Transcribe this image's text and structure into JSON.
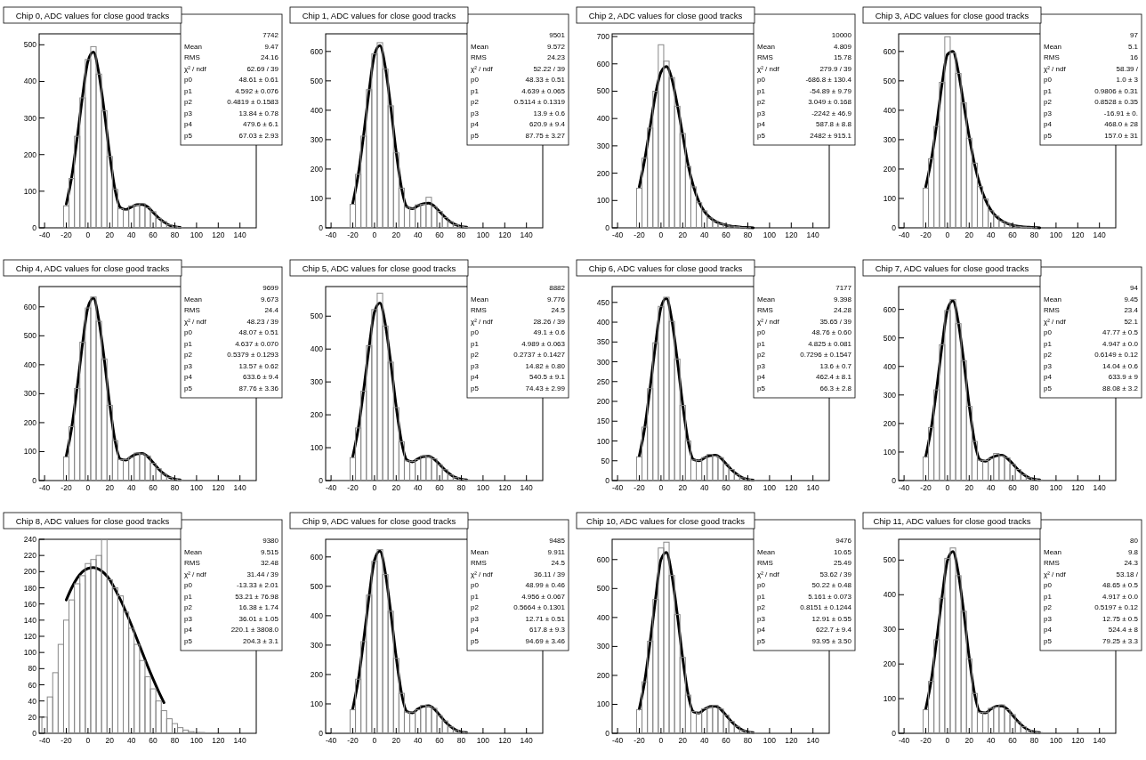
{
  "chart_data": [
    {
      "type": "histogram",
      "title": "Chip 0, ADC values for close good tracks",
      "bins": [
        -22.5,
        -17.5,
        -12.5,
        -7.5,
        -2.5,
        2.5,
        7.5,
        12.5,
        17.5,
        22.5,
        27.5,
        32.5,
        37.5,
        42.5,
        47.5,
        52.5,
        57.5,
        62.5,
        67.5,
        72.5,
        77.5,
        82.5,
        87.5
      ],
      "values": [
        60,
        135,
        250,
        355,
        460,
        495,
        420,
        320,
        195,
        105,
        52,
        48,
        60,
        62,
        66,
        55,
        44,
        26,
        17,
        8,
        3,
        1
      ],
      "color": "#888888",
      "series": [
        {
          "type": "line",
          "x": [
            -20,
            -15,
            -10,
            -5,
            0,
            5,
            10,
            15,
            20,
            25,
            30,
            35,
            40,
            45,
            50,
            55,
            60,
            65,
            70,
            75,
            80,
            85
          ],
          "values": [
            65,
            139,
            245,
            360,
            456,
            480,
            422,
            318,
            200,
            103,
            55,
            50,
            57,
            63,
            64,
            57,
            42,
            27,
            16,
            7,
            3,
            1
          ],
          "color": "#000000"
        }
      ],
      "xlim": [
        -45,
        155
      ],
      "xticks": [
        -40,
        -20,
        0,
        20,
        40,
        60,
        80,
        100,
        120,
        140
      ],
      "ylim": [
        0,
        530
      ],
      "yticks": [
        0,
        100,
        200,
        300,
        400,
        500
      ],
      "annotations": [
        "7742",
        "Mean  9.47",
        "RMS  24.16",
        "χ² / ndf  62.69 / 39",
        "p0  48.61 ± 0.61",
        "p1  4.592 ± 0.076",
        "p2  0.4819 ± 0.1583",
        "p3  13.84 ± 0.78",
        "p4  479.6 ± 6.1",
        "p5  67.03 ± 2.93"
      ]
    },
    {
      "type": "histogram",
      "title": "Chip 1, ADC values for close good tracks",
      "bins": [
        -22.5,
        -17.5,
        -12.5,
        -7.5,
        -2.5,
        2.5,
        7.5,
        12.5,
        17.5,
        22.5,
        27.5,
        32.5,
        37.5,
        42.5,
        47.5,
        52.5,
        57.5,
        62.5,
        67.5,
        72.5,
        77.5,
        82.5,
        87.5
      ],
      "values": [
        80,
        182,
        312,
        470,
        592,
        630,
        540,
        415,
        255,
        135,
        70,
        66,
        78,
        80,
        104,
        72,
        56,
        35,
        21,
        10,
        4,
        2
      ],
      "color": "#888888",
      "series": [
        {
          "type": "line",
          "x": [
            -20,
            -15,
            -10,
            -5,
            0,
            5,
            10,
            15,
            20,
            25,
            30,
            35,
            40,
            45,
            50,
            55,
            60,
            65,
            70,
            75,
            80,
            85
          ],
          "values": [
            84,
            180,
            316,
            465,
            589,
            620,
            546,
            411,
            258,
            133,
            71,
            65,
            75,
            82,
            84,
            74,
            55,
            36,
            20,
            10,
            4,
            2
          ],
          "color": "#000000"
        }
      ],
      "xlim": [
        -45,
        155
      ],
      "xticks": [
        -40,
        -20,
        0,
        20,
        40,
        60,
        80,
        100,
        120,
        140
      ],
      "ylim": [
        0,
        660
      ],
      "yticks": [
        0,
        100,
        200,
        300,
        400,
        500,
        600
      ],
      "annotations": [
        "9501",
        "Mean  9.572",
        "RMS  24.23",
        "χ² / ndf  52.22 / 39",
        "p0  48.33 ± 0.51",
        "p1  4.639 ± 0.065",
        "p2  0.5114 ± 0.1319",
        "p3  13.9 ± 0.6",
        "p4  620.9 ± 9.4",
        "p5  87.75 ± 3.27"
      ]
    },
    {
      "type": "histogram",
      "title": "Chip 2, ADC values for close good tracks",
      "bins": [
        -22.5,
        -17.5,
        -12.5,
        -7.5,
        -2.5,
        2.5,
        7.5,
        12.5,
        17.5,
        22.5,
        27.5,
        32.5,
        37.5,
        42.5,
        47.5,
        52.5,
        57.5,
        62.5,
        67.5,
        72.5,
        77.5,
        82.5,
        87.5
      ],
      "values": [
        145,
        255,
        365,
        500,
        670,
        610,
        550,
        445,
        345,
        225,
        150,
        92,
        62,
        36,
        25,
        14,
        10,
        6,
        4,
        2,
        1,
        0
      ],
      "color": "#888888",
      "series": [
        {
          "type": "line",
          "x": [
            -20,
            -15,
            -10,
            -5,
            0,
            5,
            10,
            15,
            20,
            25,
            30,
            35,
            40,
            45,
            50,
            55,
            60,
            65,
            70,
            75,
            80,
            85
          ],
          "values": [
            150,
            250,
            370,
            490,
            570,
            590,
            545,
            450,
            340,
            230,
            150,
            95,
            60,
            38,
            24,
            15,
            10,
            6,
            4,
            2,
            1,
            0
          ],
          "color": "#000000"
        }
      ],
      "xlim": [
        -45,
        155
      ],
      "xticks": [
        -40,
        -20,
        0,
        20,
        40,
        60,
        80,
        100,
        120,
        140
      ],
      "ylim": [
        0,
        710
      ],
      "yticks": [
        0,
        100,
        200,
        300,
        400,
        500,
        600,
        700
      ],
      "annotations": [
        "10000",
        "Mean  4.809",
        "RMS  15.78",
        "χ² / ndf  279.9 / 39",
        "p0  -686.8 ± 130.4",
        "p1  -54.89 ± 9.79",
        "p2  3.049 ± 0.168",
        "p3  -2242 ± 46.9",
        "p4  587.8 ± 8.8",
        "p5  2482 ± 915.1"
      ]
    },
    {
      "type": "histogram",
      "title": "Chip 3, ADC values for close good tracks",
      "bins": [
        -22.5,
        -17.5,
        -12.5,
        -7.5,
        -2.5,
        2.5,
        7.5,
        12.5,
        17.5,
        22.5,
        27.5,
        32.5,
        37.5,
        42.5,
        47.5,
        52.5,
        57.5,
        62.5,
        67.5,
        72.5,
        77.5,
        82.5,
        87.5
      ],
      "values": [
        135,
        235,
        345,
        495,
        650,
        595,
        525,
        425,
        305,
        220,
        140,
        98,
        58,
        40,
        23,
        15,
        9,
        5,
        3,
        2,
        1,
        0
      ],
      "color": "#888888",
      "series": [
        {
          "type": "line",
          "x": [
            -20,
            -15,
            -10,
            -5,
            0,
            5,
            10,
            15,
            20,
            25,
            30,
            35,
            40,
            45,
            50,
            55,
            60,
            65,
            70,
            75,
            80,
            85
          ],
          "values": [
            140,
            230,
            350,
            490,
            590,
            600,
            530,
            420,
            310,
            215,
            145,
            95,
            60,
            38,
            24,
            15,
            9,
            5,
            3,
            2,
            1,
            0
          ],
          "color": "#000000"
        }
      ],
      "xlim": [
        -45,
        155
      ],
      "xticks": [
        -40,
        -20,
        0,
        20,
        40,
        60,
        80,
        100,
        120,
        140
      ],
      "ylim": [
        0,
        660
      ],
      "yticks": [
        0,
        100,
        200,
        300,
        400,
        500,
        600
      ],
      "annotations": [
        "97",
        "Mean  5.1",
        "RMS  16",
        "χ² / ndf  58.39 /",
        "p0  1.0 ± 3",
        "p1  0.9806 ± 0.31",
        "p2  0.8528 ± 0.35",
        "p3  -16.91 ± 0.",
        "p4  468.0 ± 28",
        "p5  157.0 ± 31"
      ]
    },
    {
      "type": "histogram",
      "title": "Chip 4, ADC values for close good tracks",
      "bins": [
        -22.5,
        -17.5,
        -12.5,
        -7.5,
        -2.5,
        2.5,
        7.5,
        12.5,
        17.5,
        22.5,
        27.5,
        32.5,
        37.5,
        42.5,
        47.5,
        52.5,
        57.5,
        62.5,
        67.5,
        72.5,
        77.5,
        82.5,
        87.5
      ],
      "values": [
        82,
        186,
        318,
        478,
        596,
        634,
        550,
        420,
        260,
        138,
        72,
        73,
        80,
        95,
        92,
        85,
        60,
        41,
        22,
        11,
        5,
        2
      ],
      "color": "#888888",
      "series": [
        {
          "type": "line",
          "x": [
            -20,
            -15,
            -10,
            -5,
            0,
            5,
            10,
            15,
            20,
            25,
            30,
            35,
            40,
            45,
            50,
            55,
            60,
            65,
            70,
            75,
            80,
            85
          ],
          "values": [
            85,
            183,
            321,
            473,
            599,
            630,
            554,
            418,
            263,
            136,
            74,
            71,
            83,
            92,
            94,
            83,
            62,
            40,
            23,
            11,
            5,
            2
          ],
          "color": "#000000"
        }
      ],
      "xlim": [
        -45,
        155
      ],
      "xticks": [
        -40,
        -20,
        0,
        20,
        40,
        60,
        80,
        100,
        120,
        140
      ],
      "ylim": [
        0,
        670
      ],
      "yticks": [
        0,
        100,
        200,
        300,
        400,
        500,
        600
      ],
      "annotations": [
        "9699",
        "Mean  9.673",
        "RMS  24.4",
        "χ² / ndf  48.23 / 39",
        "p0  48.07 ± 0.51",
        "p1  4.637 ± 0.070",
        "p2  0.5379 ± 0.1293",
        "p3  13.57 ± 0.62",
        "p4  633.6 ± 9.4",
        "p5  87.76 ± 3.36"
      ]
    },
    {
      "type": "histogram",
      "title": "Chip 5, ADC values for close good tracks",
      "bins": [
        -22.5,
        -17.5,
        -12.5,
        -7.5,
        -2.5,
        2.5,
        7.5,
        12.5,
        17.5,
        22.5,
        27.5,
        32.5,
        37.5,
        42.5,
        47.5,
        52.5,
        57.5,
        62.5,
        67.5,
        72.5,
        77.5,
        82.5,
        87.5
      ],
      "values": [
        70,
        160,
        272,
        410,
        520,
        570,
        470,
        360,
        222,
        118,
        60,
        58,
        64,
        75,
        72,
        66,
        48,
        33,
        17,
        9,
        4,
        2
      ],
      "color": "#888888",
      "series": [
        {
          "type": "line",
          "x": [
            -20,
            -15,
            -10,
            -5,
            0,
            5,
            10,
            15,
            20,
            25,
            30,
            35,
            40,
            45,
            50,
            55,
            60,
            65,
            70,
            75,
            80,
            85
          ],
          "values": [
            73,
            157,
            275,
            405,
            513,
            540,
            475,
            358,
            225,
            116,
            62,
            57,
            66,
            73,
            74,
            65,
            49,
            32,
            18,
            9,
            4,
            2
          ],
          "color": "#000000"
        }
      ],
      "xlim": [
        -45,
        155
      ],
      "xticks": [
        -40,
        -20,
        0,
        20,
        40,
        60,
        80,
        100,
        120,
        140
      ],
      "ylim": [
        0,
        590
      ],
      "yticks": [
        0,
        100,
        200,
        300,
        400,
        500
      ],
      "annotations": [
        "8882",
        "Mean  9.776",
        "RMS  24.5",
        "χ² / ndf  28.26 / 39",
        "p0  49.1 ± 0.6",
        "p1  4.989 ± 0.063",
        "p2  0.2737 ± 0.1427",
        "p3  14.82 ± 0.80",
        "p4  540.5 ± 9.1",
        "p5  74.43 ± 2.99"
      ]
    },
    {
      "type": "histogram",
      "title": "Chip 6, ADC values for close good tracks",
      "bins": [
        -22.5,
        -17.5,
        -12.5,
        -7.5,
        -2.5,
        2.5,
        7.5,
        12.5,
        17.5,
        22.5,
        27.5,
        32.5,
        37.5,
        42.5,
        47.5,
        52.5,
        57.5,
        62.5,
        67.5,
        72.5,
        77.5,
        82.5,
        87.5
      ],
      "values": [
        60,
        135,
        232,
        348,
        440,
        463,
        402,
        307,
        190,
        100,
        52,
        51,
        58,
        66,
        62,
        58,
        41,
        28,
        15,
        7,
        3,
        1
      ],
      "color": "#888888",
      "series": [
        {
          "type": "line",
          "x": [
            -20,
            -15,
            -10,
            -5,
            0,
            5,
            10,
            15,
            20,
            25,
            30,
            35,
            40,
            45,
            50,
            55,
            60,
            65,
            70,
            75,
            80,
            85
          ],
          "values": [
            62,
            133,
            235,
            345,
            437,
            460,
            405,
            305,
            192,
            99,
            53,
            50,
            57,
            63,
            64,
            57,
            42,
            27,
            16,
            7,
            3,
            1
          ],
          "color": "#000000"
        }
      ],
      "xlim": [
        -45,
        155
      ],
      "xticks": [
        -40,
        -20,
        0,
        20,
        40,
        60,
        80,
        100,
        120,
        140
      ],
      "ylim": [
        0,
        490
      ],
      "yticks": [
        0,
        50,
        100,
        150,
        200,
        250,
        300,
        350,
        400,
        450
      ],
      "annotations": [
        "7177",
        "Mean  9.398",
        "RMS  24.28",
        "χ² / ndf  35.65 / 39",
        "p0  48.76 ± 0.60",
        "p1  4.825 ± 0.081",
        "p2  0.7296 ± 0.1547",
        "p3  13.6 ± 0.7",
        "p4  462.4 ± 8.1",
        "p5  66.3 ± 2.8"
      ]
    },
    {
      "type": "histogram",
      "title": "Chip 7, ADC values for close good tracks",
      "bins": [
        -22.5,
        -17.5,
        -12.5,
        -7.5,
        -2.5,
        2.5,
        7.5,
        12.5,
        17.5,
        22.5,
        27.5,
        32.5,
        37.5,
        42.5,
        47.5,
        52.5,
        57.5,
        62.5,
        67.5,
        72.5,
        77.5,
        82.5,
        87.5
      ],
      "values": [
        83,
        186,
        318,
        476,
        596,
        635,
        550,
        420,
        260,
        137,
        71,
        70,
        77,
        95,
        86,
        80,
        57,
        39,
        21,
        10,
        5,
        2
      ],
      "color": "#888888",
      "series": [
        {
          "type": "line",
          "x": [
            -20,
            -15,
            -10,
            -5,
            0,
            5,
            10,
            15,
            20,
            25,
            30,
            35,
            40,
            45,
            50,
            55,
            60,
            65,
            70,
            75,
            80,
            85
          ],
          "values": [
            85,
            183,
            321,
            473,
            599,
            630,
            554,
            418,
            263,
            135,
            73,
            68,
            79,
            87,
            89,
            78,
            59,
            38,
            22,
            10,
            5,
            2
          ],
          "color": "#000000"
        }
      ],
      "xlim": [
        -45,
        155
      ],
      "xticks": [
        -40,
        -20,
        0,
        20,
        40,
        60,
        80,
        100,
        120,
        140
      ],
      "ylim": [
        0,
        680
      ],
      "yticks": [
        0,
        100,
        200,
        300,
        400,
        500,
        600
      ],
      "annotations": [
        "94",
        "Mean  9.45",
        "RMS  23.4",
        "χ² / ndf  52.1",
        "p0  47.77 ± 0.5",
        "p1  4.947 ± 0.0",
        "p2  0.6149 ± 0.12",
        "p3  14.04 ± 0.6",
        "p4  633.9 ± 9",
        "p5  88.08 ± 3.2"
      ]
    },
    {
      "type": "histogram",
      "title": "Chip 8, ADC values for close good tracks",
      "bins": [
        -42.5,
        -37.5,
        -32.5,
        -27.5,
        -22.5,
        -17.5,
        -12.5,
        -7.5,
        -2.5,
        2.5,
        7.5,
        12.5,
        17.5,
        22.5,
        27.5,
        32.5,
        37.5,
        42.5,
        47.5,
        52.5,
        57.5,
        62.5,
        67.5,
        72.5,
        77.5,
        82.5,
        87.5,
        92.5,
        97.5,
        102.5,
        107.5,
        112.5
      ],
      "values": [
        20,
        45,
        75,
        110,
        140,
        165,
        185,
        195,
        210,
        215,
        220,
        240,
        190,
        180,
        170,
        150,
        130,
        110,
        90,
        70,
        55,
        40,
        28,
        18,
        12,
        7,
        4,
        2,
        1,
        1,
        0
      ],
      "color": "#888888",
      "series": [
        {
          "type": "line",
          "x": [
            -20,
            -15,
            -10,
            -5,
            0,
            5,
            10,
            15,
            20,
            25,
            30,
            35,
            40,
            45,
            50,
            55,
            60,
            65,
            70
          ],
          "values": [
            165,
            180,
            192,
            200,
            204,
            205,
            203,
            198,
            190,
            178,
            165,
            150,
            134,
            117,
            100,
            83,
            67,
            52,
            38
          ],
          "color": "#000000"
        }
      ],
      "xlim": [
        -45,
        155
      ],
      "xticks": [
        -40,
        -20,
        0,
        20,
        40,
        60,
        80,
        100,
        120,
        140
      ],
      "ylim": [
        0,
        240
      ],
      "yticks": [
        0,
        20,
        40,
        60,
        80,
        100,
        120,
        140,
        160,
        180,
        200,
        220,
        240
      ],
      "annotations": [
        "9380",
        "Mean  9.515",
        "RMS  32.48",
        "χ² / ndf  31.44 / 39",
        "p0  -13.33 ± 2.01",
        "p1  53.21 ± 76.98",
        "p2  16.38 ± 1.74",
        "p3  36.01 ± 1.05",
        "p4  220.1 ± 3808.0",
        "p5  204.3 ± 3.1"
      ]
    },
    {
      "type": "histogram",
      "title": "Chip 9, ADC values for close good tracks",
      "bins": [
        -22.5,
        -17.5,
        -12.5,
        -7.5,
        -2.5,
        2.5,
        7.5,
        12.5,
        17.5,
        22.5,
        27.5,
        32.5,
        37.5,
        42.5,
        47.5,
        52.5,
        57.5,
        62.5,
        67.5,
        72.5,
        77.5,
        82.5,
        87.5
      ],
      "values": [
        80,
        184,
        312,
        470,
        585,
        625,
        540,
        415,
        255,
        136,
        72,
        72,
        80,
        95,
        92,
        85,
        60,
        42,
        22,
        11,
        5,
        2
      ],
      "color": "#888888",
      "series": [
        {
          "type": "line",
          "x": [
            -20,
            -15,
            -10,
            -5,
            0,
            5,
            10,
            15,
            20,
            25,
            30,
            35,
            40,
            45,
            50,
            55,
            60,
            65,
            70,
            75,
            80,
            85
          ],
          "values": [
            84,
            180,
            316,
            465,
            589,
            620,
            546,
            411,
            259,
            134,
            74,
            70,
            83,
            92,
            94,
            83,
            62,
            40,
            23,
            11,
            5,
            2
          ],
          "color": "#000000"
        }
      ],
      "xlim": [
        -45,
        155
      ],
      "xticks": [
        -40,
        -20,
        0,
        20,
        40,
        60,
        80,
        100,
        120,
        140
      ],
      "ylim": [
        0,
        660
      ],
      "yticks": [
        0,
        100,
        200,
        300,
        400,
        500,
        600
      ],
      "annotations": [
        "9485",
        "Mean  9.911",
        "RMS  24.5",
        "χ² / ndf  36.11 / 39",
        "p0  48.99 ± 0.46",
        "p1  4.956 ± 0.067",
        "p2  0.5664 ± 0.1301",
        "p3  12.71 ± 0.51",
        "p4  617.8 ± 9.3",
        "p5  94.69 ± 3.46"
      ]
    },
    {
      "type": "histogram",
      "title": "Chip 10, ADC values for close good tracks",
      "bins": [
        -22.5,
        -17.5,
        -12.5,
        -7.5,
        -2.5,
        2.5,
        7.5,
        12.5,
        17.5,
        22.5,
        27.5,
        32.5,
        37.5,
        42.5,
        47.5,
        52.5,
        57.5,
        62.5,
        67.5,
        72.5,
        77.5,
        82.5,
        87.5
      ],
      "values": [
        82,
        178,
        318,
        462,
        640,
        660,
        545,
        410,
        262,
        132,
        75,
        70,
        85,
        90,
        97,
        84,
        63,
        41,
        24,
        11,
        5,
        2
      ],
      "color": "#888888",
      "series": [
        {
          "type": "line",
          "x": [
            -20,
            -15,
            -10,
            -5,
            0,
            5,
            10,
            15,
            20,
            25,
            30,
            35,
            40,
            45,
            50,
            55,
            60,
            65,
            70,
            75,
            80,
            85
          ],
          "values": [
            84,
            180,
            316,
            465,
            600,
            625,
            546,
            411,
            259,
            134,
            74,
            70,
            83,
            92,
            94,
            83,
            62,
            40,
            23,
            11,
            5,
            2
          ],
          "color": "#000000"
        }
      ],
      "xlim": [
        -45,
        155
      ],
      "xticks": [
        -40,
        -20,
        0,
        20,
        40,
        60,
        80,
        100,
        120,
        140
      ],
      "ylim": [
        0,
        670
      ],
      "yticks": [
        0,
        100,
        200,
        300,
        400,
        500,
        600
      ],
      "annotations": [
        "9476",
        "Mean  10.65",
        "RMS  25.49",
        "χ² / ndf  53.62 / 39",
        "p0  50.22 ± 0.48",
        "p1  5.161 ± 0.073",
        "p2  0.8151 ± 0.1244",
        "p3  12.91 ± 0.55",
        "p4  622.7 ± 9.4",
        "p5  93.95 ± 3.50"
      ]
    },
    {
      "type": "histogram",
      "title": "Chip 11, ADC values for close good tracks",
      "bins": [
        -22.5,
        -17.5,
        -12.5,
        -7.5,
        -2.5,
        2.5,
        7.5,
        12.5,
        17.5,
        22.5,
        27.5,
        32.5,
        37.5,
        42.5,
        47.5,
        52.5,
        57.5,
        62.5,
        67.5,
        72.5,
        77.5,
        82.5,
        87.5
      ],
      "values": [
        68,
        150,
        270,
        390,
        505,
        535,
        455,
        352,
        215,
        115,
        60,
        60,
        72,
        76,
        82,
        68,
        54,
        33,
        19,
        9,
        4,
        2
      ],
      "color": "#888888",
      "series": [
        {
          "type": "line",
          "x": [
            -20,
            -15,
            -10,
            -5,
            0,
            5,
            10,
            15,
            20,
            25,
            30,
            35,
            40,
            45,
            50,
            55,
            60,
            65,
            70,
            75,
            80,
            85
          ],
          "values": [
            71,
            152,
            268,
            394,
            499,
            525,
            462,
            349,
            219,
            113,
            62,
            59,
            70,
            78,
            79,
            70,
            52,
            34,
            19,
            9,
            4,
            2
          ],
          "color": "#000000"
        }
      ],
      "xlim": [
        -45,
        155
      ],
      "xticks": [
        -40,
        -20,
        0,
        20,
        40,
        60,
        80,
        100,
        120,
        140
      ],
      "ylim": [
        0,
        560
      ],
      "yticks": [
        0,
        100,
        200,
        300,
        400,
        500
      ],
      "annotations": [
        "80",
        "Mean  9.8",
        "RMS  24.3",
        "χ² / ndf  53.18 /",
        "p0  48.65 ± 0.5",
        "p1  4.917 ± 0.0",
        "p2  0.5197 ± 0.12",
        "p3  12.75 ± 0.5",
        "p4  524.4 ± 8",
        "p5  79.25 ± 3.3"
      ]
    }
  ]
}
